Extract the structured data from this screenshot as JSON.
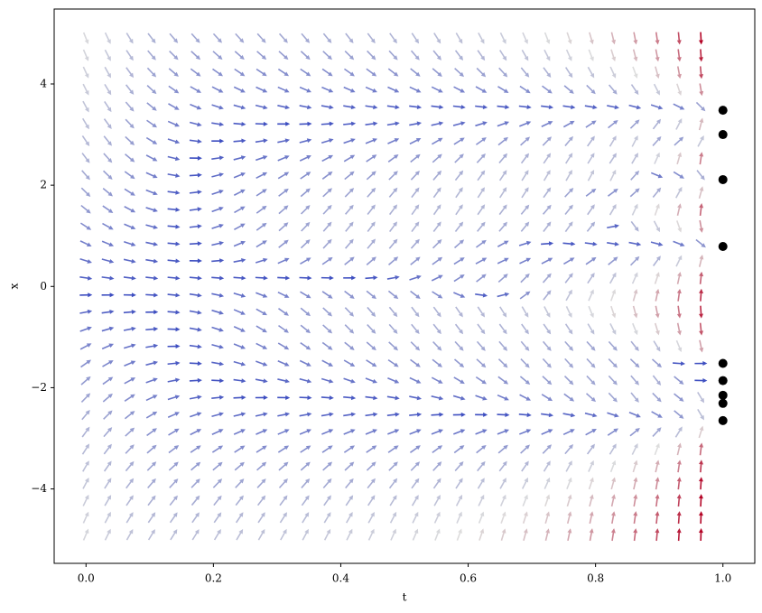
{
  "chart_data": {
    "type": "quiver",
    "xlabel": "t",
    "ylabel": "x",
    "xlim": [
      -0.05,
      1.05
    ],
    "ylim": [
      -5.47,
      5.48
    ],
    "xticks": [
      {
        "value": 0,
        "label": "0.0"
      },
      0.2,
      0.4,
      0.6,
      0.8,
      {
        "value": 1,
        "label": "1.0"
      }
    ],
    "yticks": [
      {
        "value": -4,
        "label": "−4"
      },
      {
        "value": -2,
        "label": "−2"
      },
      0,
      2,
      4
    ],
    "colormap": "coolwarm",
    "points": {
      "x": [
        1,
        1,
        1,
        1,
        1,
        1,
        1,
        1,
        1
      ],
      "y": [
        3.48,
        3.0,
        2.11,
        0.79,
        -1.52,
        -1.86,
        -2.15,
        -2.31,
        -2.65
      ],
      "color": "#000000"
    }
  }
}
